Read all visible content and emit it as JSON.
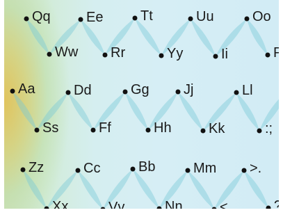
{
  "keys": [
    "Qq",
    "Ee",
    "Tt",
    "Uu",
    "Oo",
    "Ww",
    "Rr",
    "Yy",
    "Ii",
    "Pp",
    "Aa",
    "Dd",
    "Gg",
    "Jj",
    "Ll",
    "\"'",
    "Ss",
    "Ff",
    "Hh",
    "Kk",
    ":;",
    "Zz",
    "Cc",
    "Bb",
    "Mm",
    ">.",
    "Xx",
    "Vv",
    "Nn",
    "<,",
    "?/"
  ]
}
